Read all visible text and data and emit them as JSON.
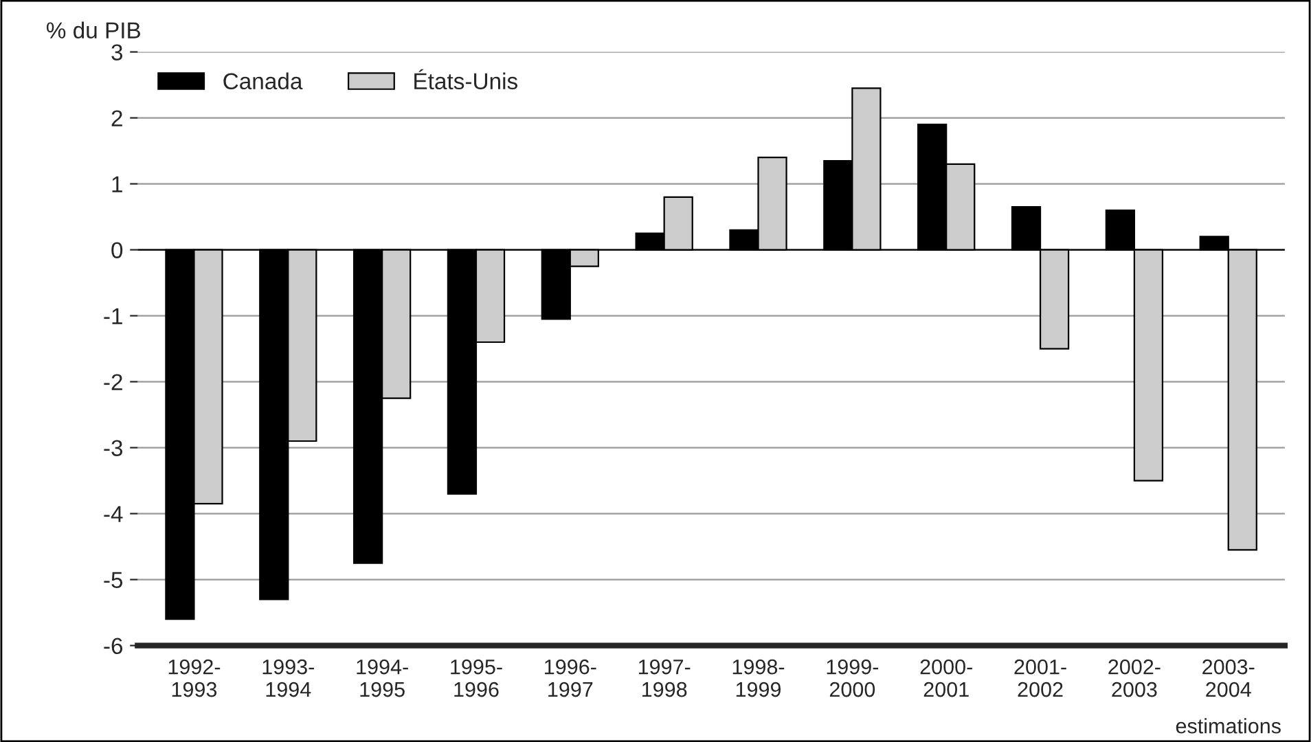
{
  "chart_data": {
    "type": "bar",
    "ylabel": "% du PIB",
    "categories": [
      "1992-\n1993",
      "1993-\n1994",
      "1994-\n1995",
      "1995-\n1996",
      "1996-\n1997",
      "1997-\n1998",
      "1998-\n1999",
      "1999-\n2000",
      "2000-\n2001",
      "2001-\n2002",
      "2002-\n2003",
      "2003-\n2004"
    ],
    "series": [
      {
        "name": "Canada",
        "color": "#000000",
        "values": [
          -5.6,
          -5.3,
          -4.75,
          -3.7,
          -1.05,
          0.25,
          0.3,
          1.35,
          1.9,
          0.65,
          0.6,
          0.2
        ]
      },
      {
        "name": "États-Unis",
        "color": "#cccccc",
        "values": [
          -3.85,
          -2.9,
          -2.25,
          -1.4,
          -0.25,
          0.8,
          1.4,
          2.45,
          1.3,
          -1.5,
          -3.5,
          -4.55
        ]
      }
    ],
    "ylim": [
      -6,
      3
    ],
    "yticks": [
      -6,
      -5,
      -4,
      -3,
      -2,
      -1,
      0,
      1,
      2,
      3
    ],
    "grid": "y",
    "legend": "top left",
    "annotations": [
      "estimations"
    ]
  }
}
